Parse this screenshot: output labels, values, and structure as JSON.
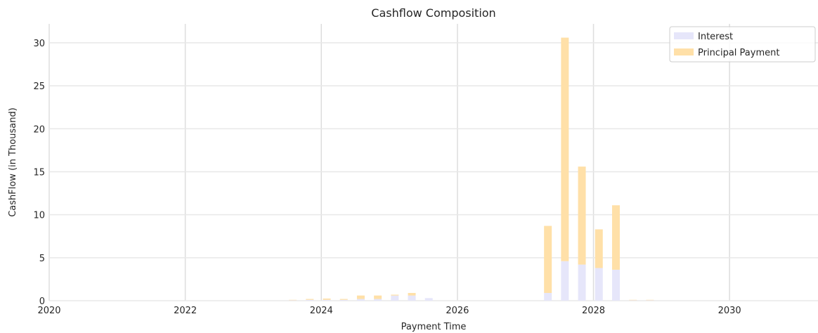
{
  "chart_data": {
    "type": "bar",
    "stacked": true,
    "title": "Cashflow Composition",
    "xlabel": "Payment Time",
    "ylabel": "CashFlow (in Thousand)",
    "xlim": [
      2020,
      2031.3
    ],
    "ylim": [
      0,
      32.2
    ],
    "x_ticks": [
      "2020",
      "2022",
      "2024",
      "2026",
      "2028",
      "2030"
    ],
    "y_ticks": [
      "0",
      "5",
      "10",
      "15",
      "20",
      "25",
      "30"
    ],
    "grid": true,
    "legend_position": "top-right",
    "x": [
      2023.58,
      2023.83,
      2024.08,
      2024.33,
      2024.58,
      2024.83,
      2025.08,
      2025.33,
      2025.58,
      2027.33,
      2027.58,
      2027.83,
      2028.08,
      2028.33,
      2028.58,
      2028.83
    ],
    "series": [
      {
        "name": "Interest",
        "color": "#e6e6fa",
        "values": [
          0.05,
          0.1,
          0.1,
          0.1,
          0.2,
          0.2,
          0.6,
          0.6,
          0.3,
          0.9,
          4.6,
          4.2,
          3.8,
          3.6,
          0.05,
          0.05
        ]
      },
      {
        "name": "Principal Payment",
        "color": "#ffe0a8",
        "values": [
          0.05,
          0.1,
          0.15,
          0.1,
          0.4,
          0.4,
          0.1,
          0.3,
          0.0,
          7.8,
          26.0,
          11.4,
          4.5,
          7.5,
          0.05,
          0.05
        ]
      }
    ]
  }
}
